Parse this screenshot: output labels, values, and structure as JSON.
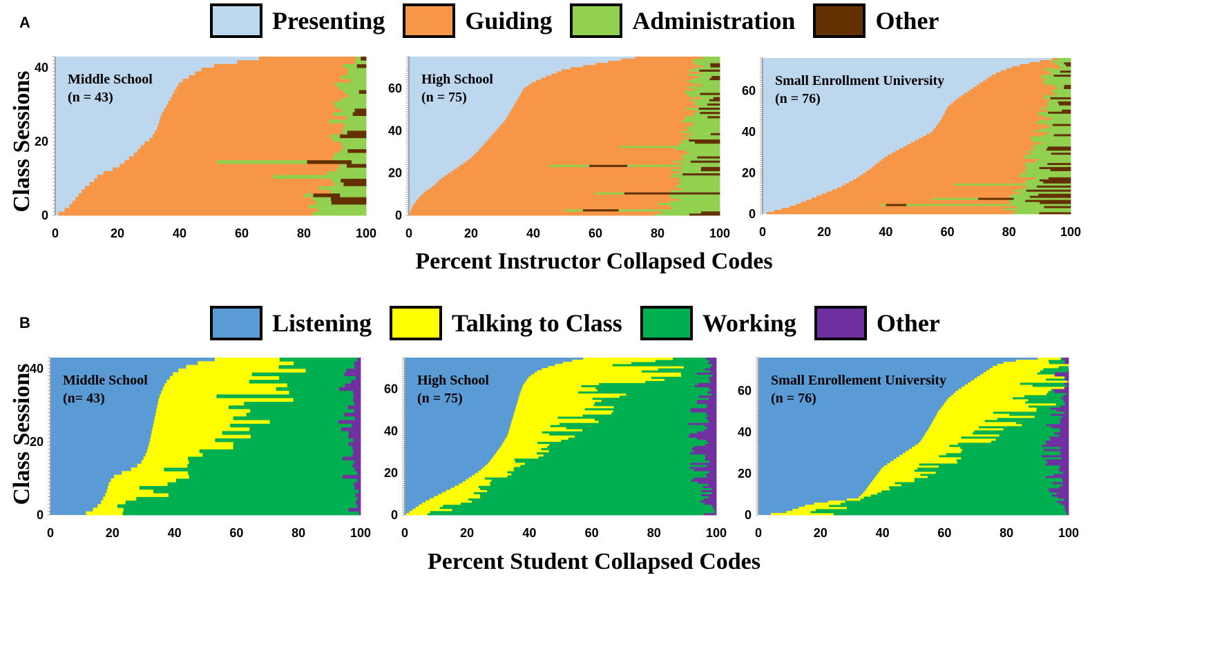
{
  "panels": [
    {
      "letter": "A",
      "legend": [
        {
          "label": "Presenting",
          "color": "#bdd7ee"
        },
        {
          "label": "Guiding",
          "color": "#f79646"
        },
        {
          "label": "Administration",
          "color": "#92d050"
        },
        {
          "label": "Other",
          "color": "#633100"
        }
      ],
      "xlabel": "Percent Instructor Collapsed Codes",
      "ylabel": "Class Sessions"
    },
    {
      "letter": "B",
      "legend": [
        {
          "label": "Listening",
          "color": "#5b9bd5"
        },
        {
          "label": "Talking to Class",
          "color": "#ffff00"
        },
        {
          "label": "Working",
          "color": "#00b050"
        },
        {
          "label": "Other",
          "color": "#7030a0"
        }
      ],
      "xlabel": "Percent Student Collapsed Codes",
      "ylabel": "Class Sessions"
    }
  ],
  "chart_data": [
    {
      "id": "A1",
      "type": "bar",
      "orientation": "horizontal",
      "stacked": true,
      "title": "Middle School",
      "n_label": "(n = 43)",
      "n": 43,
      "xlim": [
        0,
        100
      ],
      "ylim": [
        0,
        43
      ],
      "xticks": [
        0,
        20,
        40,
        60,
        80,
        100
      ],
      "yticks": [
        0,
        20,
        40
      ],
      "xlabel": "Percent Instructor Collapsed Codes",
      "ylabel": "Class Sessions",
      "categories": [
        "Presenting",
        "Guiding",
        "Administration",
        "Other"
      ],
      "colors": [
        "#bdd7ee",
        "#f79646",
        "#92d050",
        "#633100"
      ],
      "primary_curve": [
        [
          0,
          0
        ],
        [
          2,
          1
        ],
        [
          4,
          2
        ],
        [
          6,
          4
        ],
        [
          8,
          6
        ],
        [
          10,
          8
        ],
        [
          12,
          9
        ],
        [
          14,
          11
        ],
        [
          17,
          12
        ],
        [
          20,
          13
        ],
        [
          23,
          15
        ],
        [
          26,
          17
        ],
        [
          28,
          19
        ],
        [
          31,
          21
        ],
        [
          33,
          24
        ],
        [
          34,
          27
        ],
        [
          36,
          30
        ],
        [
          38,
          33
        ],
        [
          40,
          36
        ],
        [
          44,
          38
        ],
        [
          48,
          40
        ],
        [
          54,
          41
        ],
        [
          63,
          42
        ],
        [
          68,
          43
        ]
      ],
      "tail_curve": [
        [
          85,
          0
        ],
        [
          88,
          4
        ],
        [
          90,
          8
        ],
        [
          92,
          14
        ],
        [
          93,
          20
        ],
        [
          94,
          26
        ],
        [
          95,
          32
        ],
        [
          96,
          38
        ],
        [
          97,
          42
        ]
      ],
      "tail_other_share": 0.4,
      "long_rows": [
        {
          "row": 14,
          "start": 52,
          "other_from": 81
        },
        {
          "row": 10,
          "start": 70
        },
        {
          "row": 5,
          "start": 80,
          "other_from": 83
        }
      ]
    },
    {
      "id": "A2",
      "type": "bar",
      "orientation": "horizontal",
      "stacked": true,
      "title": "High School",
      "n_label": "(n = 75)",
      "n": 75,
      "xlim": [
        0,
        100
      ],
      "ylim": [
        0,
        75
      ],
      "xticks": [
        0,
        20,
        40,
        60,
        80,
        100
      ],
      "yticks": [
        0,
        20,
        40,
        60
      ],
      "xlabel": "Percent Instructor Collapsed Codes",
      "ylabel": "Class Sessions",
      "categories": [
        "Presenting",
        "Guiding",
        "Administration",
        "Other"
      ],
      "colors": [
        "#bdd7ee",
        "#f79646",
        "#92d050",
        "#633100"
      ],
      "primary_curve": [
        [
          0,
          0
        ],
        [
          1,
          4
        ],
        [
          3,
          8
        ],
        [
          5,
          11
        ],
        [
          8,
          14
        ],
        [
          10,
          17
        ],
        [
          13,
          20
        ],
        [
          16,
          23
        ],
        [
          19,
          26
        ],
        [
          22,
          30
        ],
        [
          25,
          35
        ],
        [
          28,
          40
        ],
        [
          31,
          45
        ],
        [
          33,
          50
        ],
        [
          35,
          55
        ],
        [
          37,
          60
        ],
        [
          40,
          63
        ],
        [
          45,
          66
        ],
        [
          50,
          69
        ],
        [
          58,
          71
        ],
        [
          66,
          73
        ],
        [
          75,
          75
        ]
      ],
      "tail_curve": [
        [
          84,
          0
        ],
        [
          87,
          8
        ],
        [
          89,
          16
        ],
        [
          91,
          26
        ],
        [
          92,
          36
        ],
        [
          93,
          46
        ],
        [
          94,
          56
        ],
        [
          95,
          66
        ],
        [
          96,
          74
        ]
      ],
      "tail_other_share": 0.45,
      "long_rows": [
        {
          "row": 23,
          "start": 45,
          "other_from": 58
        },
        {
          "row": 2,
          "start": 50,
          "other_from": 56
        },
        {
          "row": 10,
          "start": 60
        },
        {
          "row": 32,
          "start": 68
        }
      ]
    },
    {
      "id": "A3",
      "type": "bar",
      "orientation": "horizontal",
      "stacked": true,
      "title": "Small Enrollment University",
      "n_label": "(n = 76)",
      "n": 76,
      "xlim": [
        0,
        100
      ],
      "ylim": [
        0,
        76
      ],
      "xticks": [
        0,
        20,
        40,
        60,
        80,
        100
      ],
      "yticks": [
        0,
        20,
        40,
        60
      ],
      "xlabel": "Percent Instructor Collapsed Codes",
      "ylabel": "Class Sessions",
      "categories": [
        "Presenting",
        "Guiding",
        "Administration",
        "Other"
      ],
      "colors": [
        "#bdd7ee",
        "#f79646",
        "#92d050",
        "#633100"
      ],
      "primary_curve": [
        [
          0,
          0
        ],
        [
          5,
          2
        ],
        [
          10,
          4
        ],
        [
          15,
          7
        ],
        [
          20,
          10
        ],
        [
          25,
          13
        ],
        [
          30,
          17
        ],
        [
          35,
          22
        ],
        [
          40,
          28
        ],
        [
          45,
          32
        ],
        [
          50,
          36
        ],
        [
          55,
          40
        ],
        [
          58,
          46
        ],
        [
          60,
          52
        ],
        [
          63,
          56
        ],
        [
          67,
          60
        ],
        [
          71,
          64
        ],
        [
          75,
          68
        ],
        [
          78,
          70
        ],
        [
          82,
          72
        ],
        [
          88,
          74
        ],
        [
          96,
          76
        ]
      ],
      "tail_curve": [
        [
          82,
          0
        ],
        [
          85,
          6
        ],
        [
          88,
          14
        ],
        [
          90,
          24
        ],
        [
          92,
          34
        ],
        [
          94,
          44
        ],
        [
          95,
          54
        ],
        [
          96,
          64
        ],
        [
          97,
          72
        ]
      ],
      "tail_other_share": 0.35,
      "long_rows": [
        {
          "row": 4,
          "start": 38,
          "other_from": 40
        },
        {
          "row": 7,
          "start": 55,
          "other_from": 70
        },
        {
          "row": 14,
          "start": 62
        }
      ]
    },
    {
      "id": "B1",
      "type": "bar",
      "orientation": "horizontal",
      "stacked": true,
      "title": "Middle School",
      "n_label": "(n= 43)",
      "n": 43,
      "xlim": [
        0,
        100
      ],
      "ylim": [
        0,
        43
      ],
      "xticks": [
        0,
        20,
        40,
        60,
        80,
        100
      ],
      "yticks": [
        0,
        20,
        40
      ],
      "xlabel": "Percent Student Collapsed Codes",
      "ylabel": "Class Sessions",
      "categories": [
        "Listening",
        "Talking to Class",
        "Working",
        "Other"
      ],
      "colors": [
        "#5b9bd5",
        "#ffff00",
        "#00b050",
        "#7030a0"
      ],
      "primary_curve": [
        [
          10,
          0
        ],
        [
          13,
          1
        ],
        [
          16,
          3
        ],
        [
          18,
          6
        ],
        [
          19,
          9
        ],
        [
          21,
          11
        ],
        [
          25,
          12
        ],
        [
          29,
          14
        ],
        [
          31,
          17
        ],
        [
          32,
          20
        ],
        [
          33,
          24
        ],
        [
          34,
          28
        ],
        [
          35,
          32
        ],
        [
          37,
          36
        ],
        [
          40,
          39
        ],
        [
          45,
          41
        ],
        [
          50,
          42
        ],
        [
          56,
          43
        ]
      ],
      "secondary_curve": [
        [
          20,
          0
        ],
        [
          30,
          4
        ],
        [
          38,
          8
        ],
        [
          44,
          12
        ],
        [
          50,
          16
        ],
        [
          55,
          20
        ],
        [
          60,
          24
        ],
        [
          64,
          28
        ],
        [
          68,
          32
        ],
        [
          72,
          36
        ],
        [
          76,
          40
        ],
        [
          80,
          43
        ]
      ],
      "tail_curve": [
        [
          100,
          0
        ],
        [
          99,
          5
        ],
        [
          98,
          10
        ],
        [
          97,
          15
        ],
        [
          97,
          20
        ],
        [
          96,
          25
        ],
        [
          96,
          30
        ],
        [
          96,
          35
        ],
        [
          97,
          40
        ],
        [
          98,
          43
        ]
      ],
      "tail_other_share": 0.5
    },
    {
      "id": "B2",
      "type": "bar",
      "orientation": "horizontal",
      "stacked": true,
      "title": "High School",
      "n_label": "(n = 75)",
      "n": 75,
      "xlim": [
        0,
        100
      ],
      "ylim": [
        0,
        75
      ],
      "xticks": [
        0,
        20,
        40,
        60,
        80,
        100
      ],
      "yticks": [
        0,
        20,
        40,
        60
      ],
      "xlabel": "Percent Student Collapsed Codes",
      "ylabel": "Class Sessions",
      "categories": [
        "Listening",
        "Talking to Class",
        "Working",
        "Other"
      ],
      "colors": [
        "#5b9bd5",
        "#ffff00",
        "#00b050",
        "#7030a0"
      ],
      "primary_curve": [
        [
          0,
          0
        ],
        [
          3,
          3
        ],
        [
          6,
          6
        ],
        [
          10,
          9
        ],
        [
          14,
          12
        ],
        [
          18,
          15
        ],
        [
          21,
          18
        ],
        [
          24,
          21
        ],
        [
          27,
          25
        ],
        [
          29,
          29
        ],
        [
          31,
          33
        ],
        [
          33,
          38
        ],
        [
          34,
          43
        ],
        [
          35,
          48
        ],
        [
          36,
          53
        ],
        [
          37,
          58
        ],
        [
          38,
          62
        ],
        [
          40,
          66
        ],
        [
          43,
          69
        ],
        [
          47,
          71
        ],
        [
          52,
          73
        ],
        [
          59,
          75
        ]
      ],
      "secondary_curve": [
        [
          10,
          0
        ],
        [
          20,
          8
        ],
        [
          28,
          16
        ],
        [
          36,
          24
        ],
        [
          44,
          32
        ],
        [
          52,
          40
        ],
        [
          60,
          48
        ],
        [
          67,
          56
        ],
        [
          74,
          64
        ],
        [
          82,
          72
        ],
        [
          88,
          75
        ]
      ],
      "tail_curve": [
        [
          100,
          0
        ],
        [
          98,
          8
        ],
        [
          96,
          16
        ],
        [
          95,
          24
        ],
        [
          94,
          32
        ],
        [
          94,
          40
        ],
        [
          95,
          48
        ],
        [
          96,
          56
        ],
        [
          97,
          64
        ],
        [
          98,
          72
        ]
      ],
      "tail_other_share": 0.5
    },
    {
      "id": "B3",
      "type": "bar",
      "orientation": "horizontal",
      "stacked": true,
      "title": "Small Enrollement University",
      "n_label": "(n = 76)",
      "n": 76,
      "xlim": [
        0,
        100
      ],
      "ylim": [
        0,
        76
      ],
      "xticks": [
        0,
        20,
        40,
        60,
        80,
        100
      ],
      "yticks": [
        0,
        20,
        40,
        60
      ],
      "xlabel": "Percent Student Collapsed Codes",
      "ylabel": "Class Sessions",
      "categories": [
        "Listening",
        "Talking to Class",
        "Working",
        "Other"
      ],
      "colors": [
        "#5b9bd5",
        "#ffff00",
        "#00b050",
        "#7030a0"
      ],
      "primary_curve": [
        [
          0,
          0
        ],
        [
          8,
          1
        ],
        [
          12,
          3
        ],
        [
          16,
          5
        ],
        [
          20,
          6
        ],
        [
          25,
          7
        ],
        [
          32,
          8
        ],
        [
          34,
          11
        ],
        [
          36,
          15
        ],
        [
          38,
          19
        ],
        [
          40,
          23
        ],
        [
          44,
          27
        ],
        [
          48,
          31
        ],
        [
          52,
          35
        ],
        [
          55,
          42
        ],
        [
          58,
          50
        ],
        [
          61,
          56
        ],
        [
          64,
          60
        ],
        [
          68,
          64
        ],
        [
          72,
          68
        ],
        [
          76,
          72
        ],
        [
          80,
          74
        ],
        [
          86,
          75
        ],
        [
          94,
          76
        ]
      ],
      "secondary_curve": [
        [
          20,
          0
        ],
        [
          30,
          6
        ],
        [
          40,
          12
        ],
        [
          50,
          18
        ],
        [
          58,
          24
        ],
        [
          64,
          30
        ],
        [
          70,
          36
        ],
        [
          76,
          42
        ],
        [
          82,
          48
        ],
        [
          88,
          54
        ],
        [
          92,
          60
        ],
        [
          95,
          66
        ],
        [
          97,
          72
        ]
      ],
      "tail_curve": [
        [
          100,
          0
        ],
        [
          98,
          8
        ],
        [
          96,
          16
        ],
        [
          95,
          24
        ],
        [
          95,
          32
        ],
        [
          96,
          40
        ],
        [
          97,
          48
        ],
        [
          98,
          56
        ],
        [
          99,
          64
        ],
        [
          100,
          72
        ]
      ],
      "tail_other_share": 0.4
    }
  ]
}
